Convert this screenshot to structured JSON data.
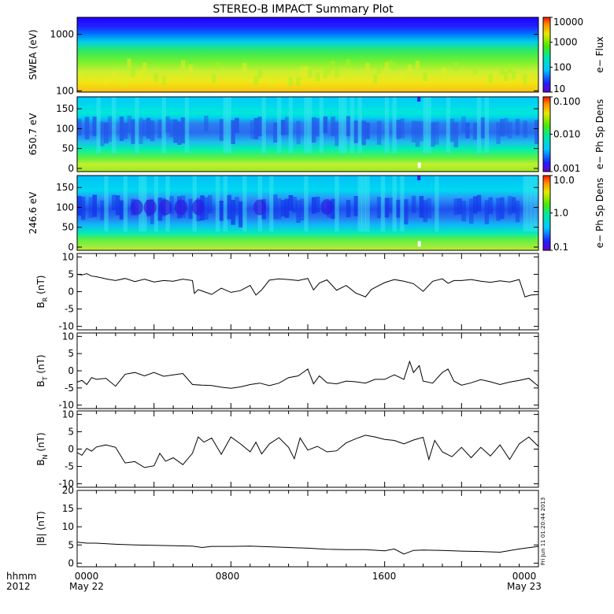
{
  "title": "STEREO-B IMPACT Summary Plot",
  "footer": {
    "left_label_line1": "hhmm",
    "left_label_line2": "2012",
    "x_tick_labels": [
      "0000",
      "0800",
      "1600",
      "0000"
    ],
    "x_date_labels": [
      "May 22",
      "May 23"
    ]
  },
  "side_stamp": "Fri Jun 11 01:20:44 2013",
  "chart_data": [
    {
      "type": "heatmap",
      "ylabel": "SWEA (eV)",
      "yscale": "log",
      "ylim": [
        95,
        2000
      ],
      "y_ticks": [
        100,
        1000
      ],
      "y_tick_labels": [
        "100",
        "1000"
      ],
      "colorbar": {
        "label": "e− Flux",
        "scale": "log",
        "range": [
          10,
          10000
        ],
        "tick_labels": [
          "10000",
          "1000",
          "100",
          "10"
        ]
      }
    },
    {
      "type": "heatmap",
      "ylabel": "650.7 eV",
      "ylim": [
        -8,
        180
      ],
      "y_ticks": [
        0,
        50,
        100,
        150
      ],
      "y_tick_labels": [
        "0",
        "50",
        "100",
        "150"
      ],
      "colorbar": {
        "label": "e− Ph Sp Dens",
        "scale": "log",
        "range": [
          0.001,
          0.1
        ],
        "tick_labels": [
          "0.100",
          "0.010",
          "0.001"
        ]
      }
    },
    {
      "type": "heatmap",
      "ylabel": "246.6 eV",
      "ylim": [
        -8,
        180
      ],
      "y_ticks": [
        0,
        50,
        100,
        150
      ],
      "y_tick_labels": [
        "0",
        "50",
        "100",
        "150"
      ],
      "colorbar": {
        "label": "e− Ph Sp Dens",
        "scale": "log",
        "range": [
          0.1,
          10
        ],
        "tick_labels": [
          "10.0",
          "1.0",
          "0.1"
        ]
      }
    },
    {
      "type": "line",
      "ylabel": "B_R (nT)",
      "ylabel_main": "B",
      "ylabel_sub": "R",
      "ylabel_unit": "(nT)",
      "ylim": [
        -11,
        11
      ],
      "y_ticks": [
        -10,
        -5,
        0,
        5,
        10
      ],
      "y_tick_labels": [
        "-10",
        "-5",
        "0",
        "5",
        "10"
      ],
      "x_hours": [
        0,
        0.25,
        0.5,
        0.75,
        1,
        1.5,
        2,
        2.5,
        3,
        3.5,
        4,
        4.5,
        5,
        5.5,
        6,
        6.1,
        6.3,
        6.6,
        7,
        7.5,
        8,
        8.5,
        9,
        9.3,
        9.6,
        10,
        10.5,
        11,
        11.5,
        12,
        12.3,
        12.6,
        13,
        13.5,
        14,
        14.5,
        15,
        15.3,
        15.6,
        16,
        16.5,
        17,
        17.5,
        18,
        18.5,
        19,
        19.3,
        19.6,
        20,
        20.5,
        21,
        21.5,
        22,
        22.5,
        23,
        23.3,
        23.6,
        24
      ],
      "values": [
        5,
        4.8,
        5.2,
        4.5,
        4.3,
        3.7,
        3.2,
        3.8,
        2.9,
        3.6,
        2.8,
        3.2,
        3,
        3.6,
        3.2,
        -0.5,
        0.6,
        0,
        -0.8,
        1,
        -0.2,
        0.3,
        1.8,
        -1,
        0.5,
        3.3,
        3.7,
        3.5,
        3.2,
        3.8,
        0.5,
        2.5,
        3.4,
        0.4,
        1.8,
        -0.4,
        -1.5,
        0.6,
        1.5,
        2.6,
        3.5,
        3,
        2.3,
        0.1,
        3,
        3.7,
        2.4,
        3.2,
        3.2,
        3.5,
        3,
        2.7,
        3.1,
        2.8,
        3.5,
        -1.5,
        -1,
        -0.8
      ]
    },
    {
      "type": "line",
      "ylabel": "B_T (nT)",
      "ylabel_main": "B",
      "ylabel_sub": "T",
      "ylabel_unit": "(nT)",
      "ylim": [
        -11,
        11
      ],
      "y_ticks": [
        -10,
        -5,
        0,
        5,
        10
      ],
      "y_tick_labels": [
        "-10",
        "-5",
        "0",
        "5",
        "10"
      ],
      "x_hours": [
        0,
        0.25,
        0.5,
        0.75,
        1,
        1.5,
        2,
        2.5,
        3,
        3.5,
        4,
        4.5,
        5,
        5.5,
        6,
        6.5,
        7,
        7.5,
        8,
        8.5,
        9,
        9.5,
        10,
        10.5,
        11,
        11.5,
        12,
        12.3,
        12.6,
        13,
        13.5,
        14,
        14.5,
        15,
        15.5,
        16,
        16.5,
        17,
        17.3,
        17.5,
        17.8,
        18,
        18.5,
        19,
        19.3,
        19.6,
        20,
        20.5,
        21,
        21.5,
        22,
        22.5,
        23,
        23.5,
        24
      ],
      "values": [
        -3.3,
        -2.8,
        -4,
        -2,
        -2.5,
        -2.2,
        -4.5,
        -1,
        -0.5,
        -1.5,
        -0.5,
        -1.6,
        -1.2,
        -0.8,
        -4,
        -4.2,
        -4.3,
        -4.8,
        -5.1,
        -4.7,
        -4,
        -3.6,
        -4.3,
        -3.6,
        -2,
        -1.5,
        0.5,
        -3.8,
        -1.5,
        -3.5,
        -3.8,
        -3,
        -3.2,
        -3.6,
        -2.5,
        -2.5,
        -1.2,
        -2.5,
        2.7,
        -0.5,
        1.5,
        -3,
        -3.6,
        -0.5,
        0.5,
        -3,
        -4.2,
        -3.5,
        -2.6,
        -3.2,
        -4,
        -3.3,
        -2.8,
        -2.2,
        -4.5
      ]
    },
    {
      "type": "line",
      "ylabel": "B_N (nT)",
      "ylabel_main": "B",
      "ylabel_sub": "N",
      "ylabel_unit": "(nT)",
      "ylim": [
        -11,
        11
      ],
      "y_ticks": [
        -10,
        -5,
        0,
        5,
        10
      ],
      "y_tick_labels": [
        "-10",
        "-5",
        "0",
        "5",
        "10"
      ],
      "x_hours": [
        0,
        0.25,
        0.5,
        0.75,
        1,
        1.5,
        2,
        2.5,
        3,
        3.5,
        4,
        4.3,
        4.6,
        5,
        5.5,
        6,
        6.3,
        6.6,
        7,
        7.5,
        8,
        8.5,
        9,
        9.3,
        9.6,
        10,
        10.5,
        11,
        11.3,
        11.6,
        12,
        12.5,
        13,
        13.5,
        14,
        14.5,
        15,
        15.5,
        16,
        16.5,
        17,
        17.5,
        18,
        18.3,
        18.6,
        19,
        19.5,
        20,
        20.5,
        21,
        21.5,
        22,
        22.5,
        23,
        23.5,
        24
      ],
      "values": [
        -1,
        -1.8,
        0.2,
        -0.6,
        0.6,
        1.2,
        0.5,
        -4,
        -3.6,
        -5.3,
        -4.8,
        -1.2,
        -3.5,
        -2.5,
        -4.5,
        -1.2,
        3.5,
        2,
        3.2,
        -1.5,
        3.5,
        1.5,
        -0.8,
        2,
        -1.4,
        1.5,
        3.3,
        0.5,
        -2.8,
        3.2,
        -0.3,
        0.8,
        -0.8,
        -0.5,
        1.8,
        3,
        4,
        3.5,
        2.8,
        2.5,
        1.5,
        2.6,
        3.4,
        -3,
        2.5,
        -0.8,
        -2.2,
        0.5,
        -2.5,
        0.5,
        -2,
        1.2,
        -3,
        1.5,
        3.5,
        0.8
      ]
    },
    {
      "type": "line",
      "ylabel": "|B| (nT)",
      "ylabel_main": "|B|",
      "ylabel_unit": "(nT)",
      "ylim": [
        -1,
        20
      ],
      "y_ticks": [
        0,
        5,
        10,
        15,
        20
      ],
      "y_tick_labels": [
        "0",
        "5",
        "10",
        "15",
        "20"
      ],
      "x_hours": [
        0,
        0.5,
        1,
        2,
        3,
        4,
        5,
        6,
        6.5,
        7,
        8,
        9,
        10,
        11,
        12,
        13,
        14,
        15,
        16,
        16.5,
        17,
        17.5,
        18,
        19,
        20,
        21,
        22,
        23,
        24
      ],
      "values": [
        5.8,
        5.5,
        5.5,
        5.2,
        5,
        4.9,
        4.8,
        4.7,
        4.3,
        4.6,
        4.6,
        4.7,
        4.5,
        4.3,
        4.1,
        3.8,
        3.7,
        3.7,
        3.4,
        3.9,
        2.5,
        3.5,
        3.6,
        3.5,
        3.3,
        3.2,
        3,
        3.9,
        4.6
      ]
    }
  ]
}
